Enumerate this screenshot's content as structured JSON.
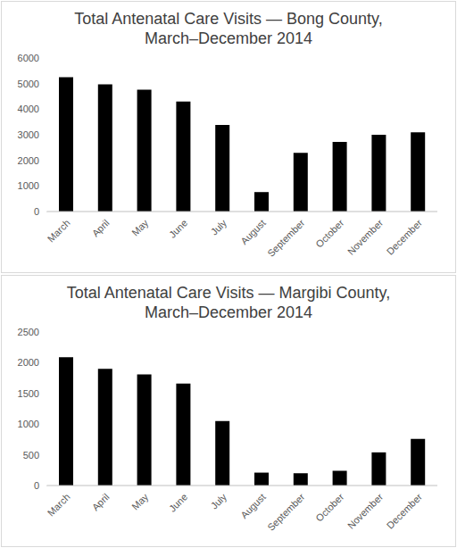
{
  "chart_data": [
    {
      "type": "bar",
      "title": "Total Antenatal Care Visits — Bong County, March–December 2014",
      "categories": [
        "March",
        "April",
        "May",
        "June",
        "July",
        "August",
        "September",
        "October",
        "November",
        "December"
      ],
      "values": [
        5250,
        4970,
        4760,
        4300,
        3380,
        760,
        2290,
        2720,
        3000,
        3100
      ],
      "color": "#000000",
      "ylim": [
        0,
        6000
      ],
      "yticks": [
        0,
        1000,
        2000,
        3000,
        4000,
        5000,
        6000
      ],
      "grid": false
    },
    {
      "type": "bar",
      "title": "Total Antenatal Care Visits — Margibi County, March–December 2014",
      "categories": [
        "March",
        "April",
        "May",
        "June",
        "July",
        "August",
        "September",
        "October",
        "November",
        "December"
      ],
      "values": [
        2090,
        1900,
        1810,
        1660,
        1050,
        210,
        200,
        240,
        540,
        760
      ],
      "color": "#000000",
      "ylim": [
        0,
        2500
      ],
      "yticks": [
        0,
        500,
        1000,
        1500,
        2000,
        2500
      ],
      "grid": false
    }
  ]
}
